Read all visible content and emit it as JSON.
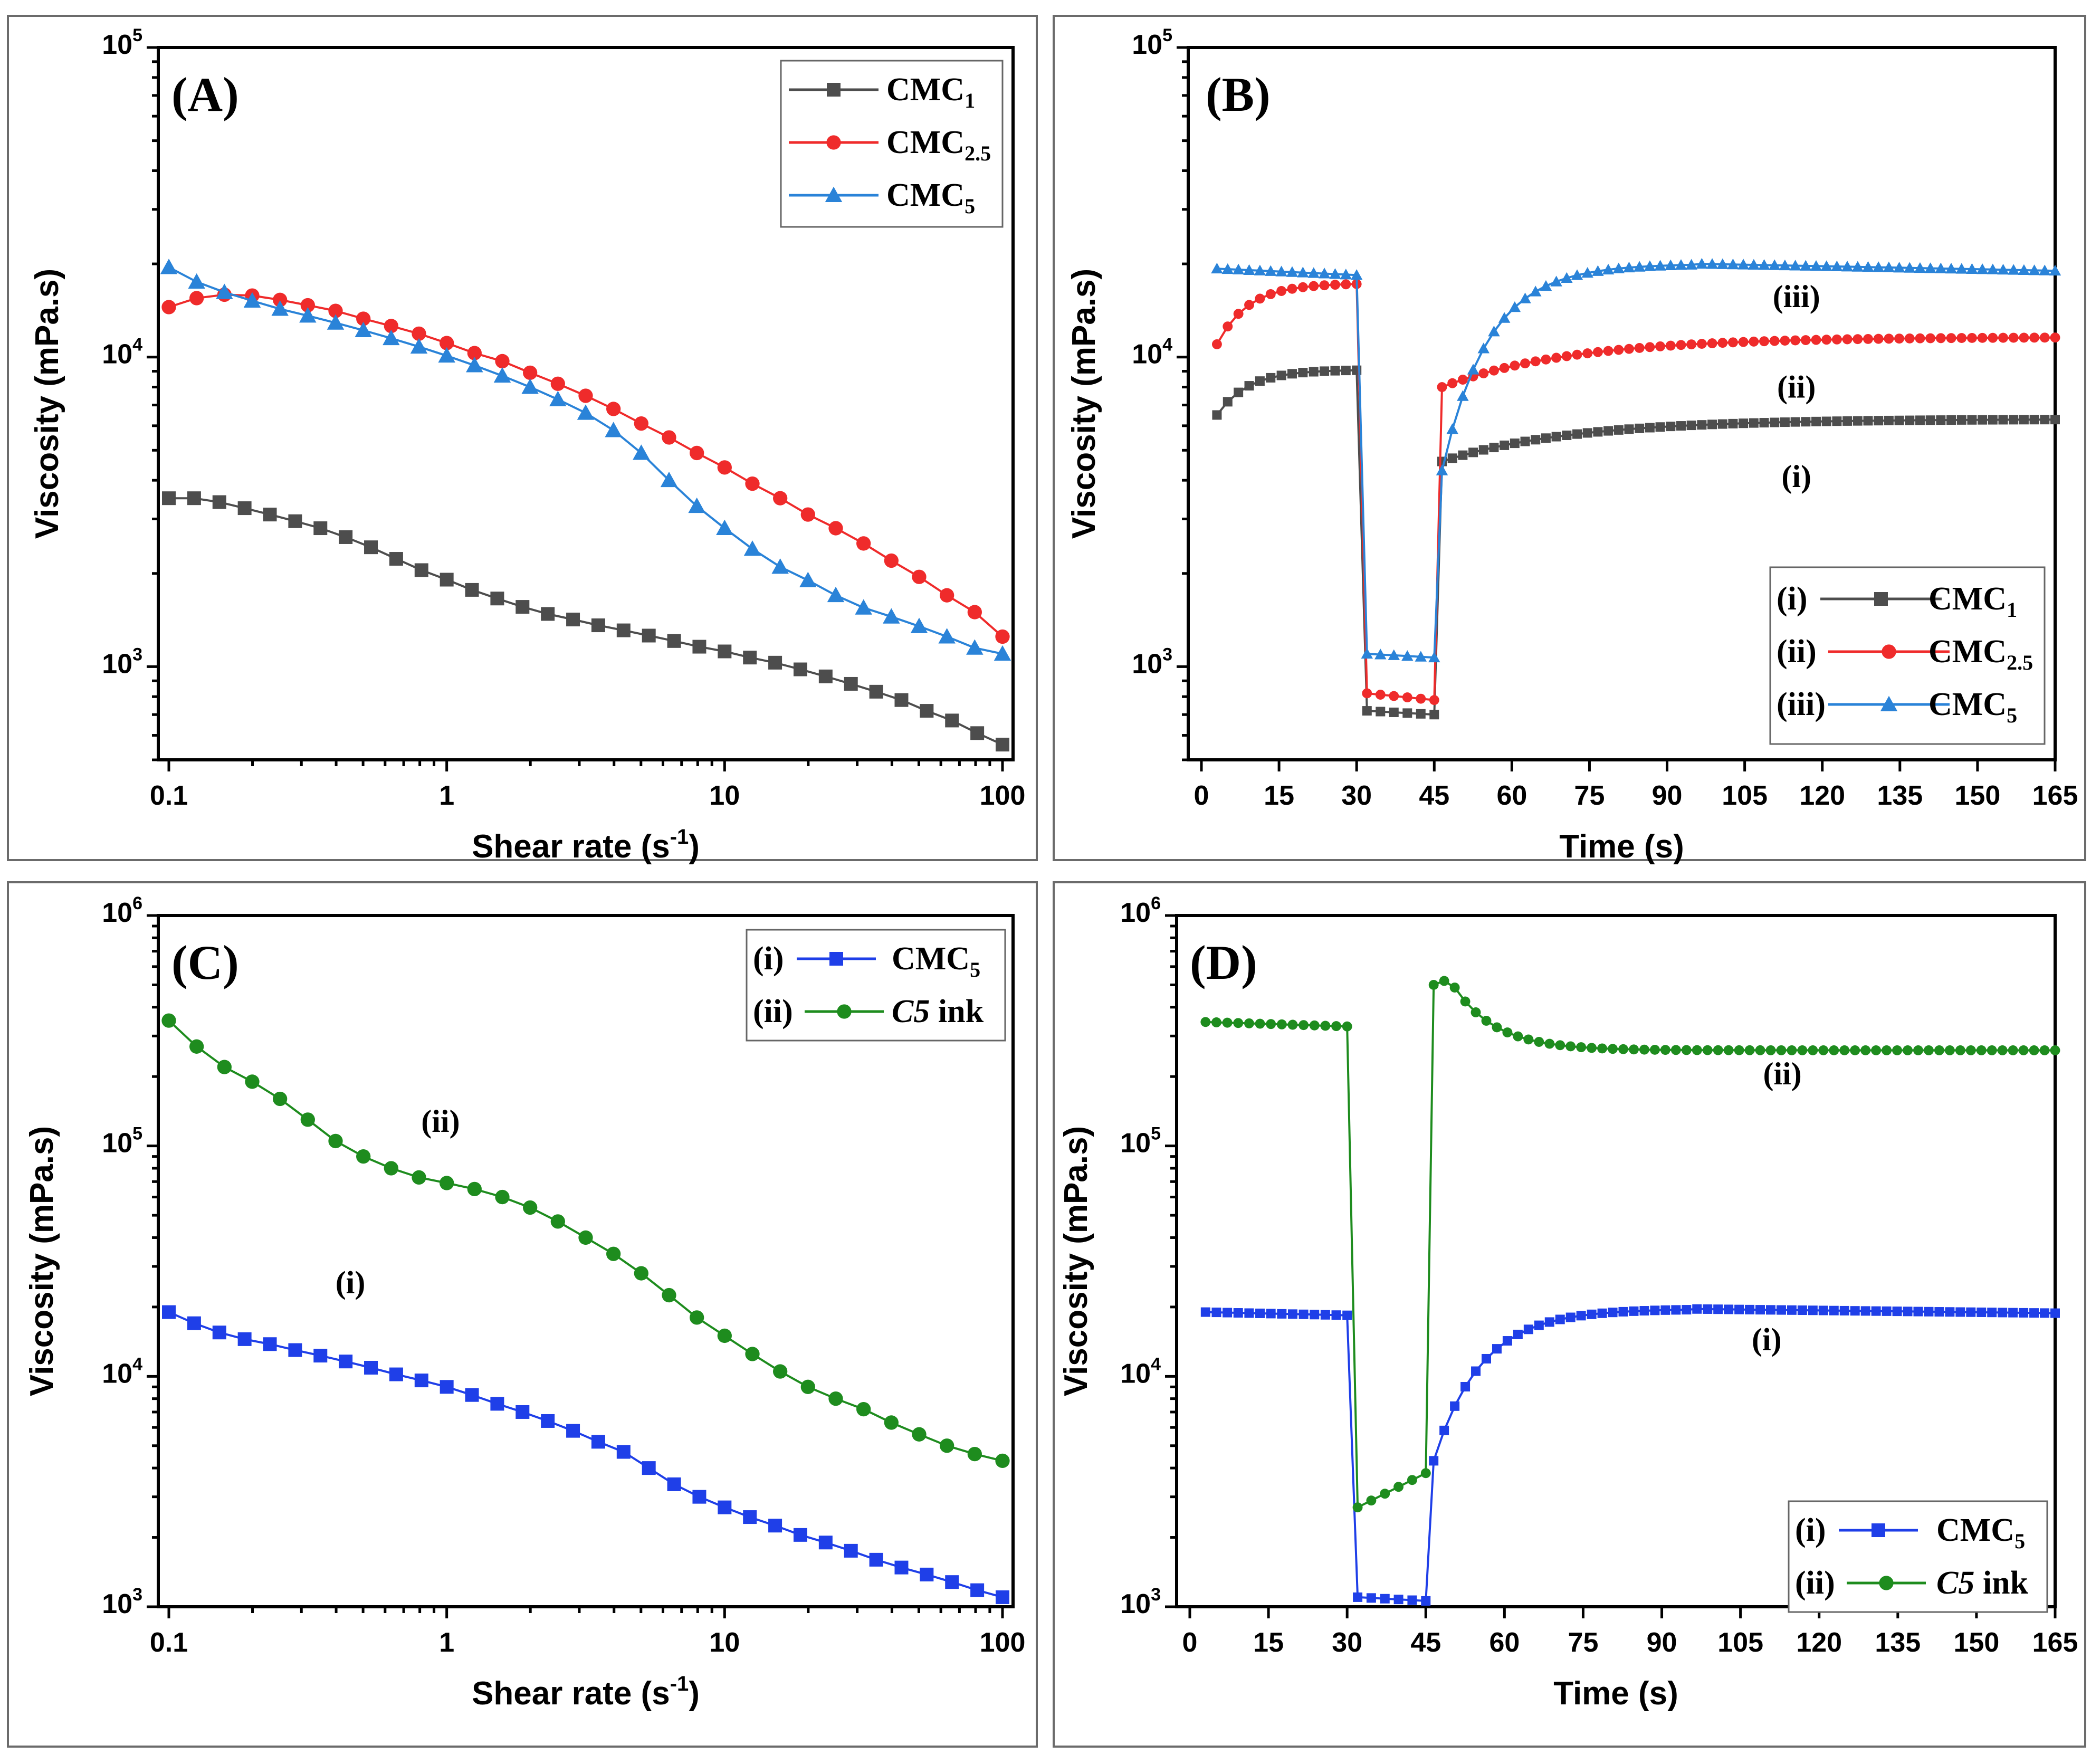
{
  "colors": {
    "CMC1": "#4d4d4d",
    "CMC2.5": "#ef2b2b",
    "CMC5": "#2a83d8",
    "CMC5_blue": "#1f3fe8",
    "C5_ink": "#1e8c1e"
  },
  "chart_data": [
    {
      "id": "A",
      "panel_label": "(A)",
      "type": "line",
      "xscale": "log",
      "yscale": "log",
      "xlim": [
        0.1,
        100
      ],
      "ylim": [
        500,
        100000
      ],
      "xticks": [
        0.1,
        1,
        10,
        100
      ],
      "xtick_labels": [
        "0.1",
        "1",
        "10",
        "100"
      ],
      "yticks": [
        1000,
        10000,
        100000
      ],
      "ytick_labels": [
        {
          "base": "10",
          "exp": "3"
        },
        {
          "base": "10",
          "exp": "4"
        },
        {
          "base": "10",
          "exp": "5"
        }
      ],
      "xlabel": {
        "text": "Shear rate (s",
        "sup": "-1",
        "tail": ")"
      },
      "ylabel": "Viscosity (mPa.s)",
      "legend_position": "top-right",
      "series": [
        {
          "name": "CMC",
          "sub": "1",
          "marker": "square",
          "color": "#4d4d4d",
          "x_range": [
            0.1,
            100
          ],
          "n": 34,
          "y": [
            3500,
            3500,
            3400,
            3250,
            3100,
            2950,
            2800,
            2620,
            2430,
            2230,
            2050,
            1910,
            1770,
            1660,
            1560,
            1480,
            1420,
            1360,
            1310,
            1260,
            1210,
            1160,
            1120,
            1070,
            1030,
            980,
            930,
            880,
            830,
            780,
            720,
            670,
            610,
            560
          ]
        },
        {
          "name": "CMC",
          "sub": "2.5",
          "marker": "circle",
          "color": "#ef2b2b",
          "x_range": [
            0.1,
            100
          ],
          "n": 31,
          "y": [
            14500,
            15500,
            15900,
            15800,
            15300,
            14700,
            14100,
            13300,
            12600,
            11900,
            11100,
            10300,
            9700,
            8900,
            8200,
            7500,
            6800,
            6100,
            5500,
            4900,
            4400,
            3900,
            3500,
            3100,
            2800,
            2500,
            2200,
            1950,
            1700,
            1500,
            1250
          ]
        },
        {
          "name": "CMC",
          "sub": "5",
          "marker": "triangle",
          "color": "#2a83d8",
          "x_range": [
            0.1,
            100
          ],
          "n": 31,
          "y": [
            19500,
            17500,
            16200,
            15200,
            14300,
            13600,
            12900,
            12200,
            11500,
            10800,
            10100,
            9400,
            8700,
            8000,
            7300,
            6600,
            5800,
            4900,
            4000,
            3300,
            2800,
            2400,
            2100,
            1900,
            1700,
            1550,
            1450,
            1350,
            1250,
            1150,
            1100
          ]
        }
      ]
    },
    {
      "id": "B",
      "panel_label": "(B)",
      "type": "line",
      "xscale": "linear",
      "yscale": "log",
      "xlim": [
        0,
        165
      ],
      "ylim": [
        500,
        100000
      ],
      "xticks": [
        0,
        15,
        30,
        45,
        60,
        75,
        90,
        105,
        120,
        135,
        150,
        165
      ],
      "xtick_labels": [
        "0",
        "15",
        "30",
        "45",
        "60",
        "75",
        "90",
        "105",
        "120",
        "135",
        "150",
        "165"
      ],
      "yticks": [
        1000,
        10000,
        100000
      ],
      "ytick_labels": [
        {
          "base": "10",
          "exp": "3"
        },
        {
          "base": "10",
          "exp": "4"
        },
        {
          "base": "10",
          "exp": "5"
        }
      ],
      "xlabel": {
        "text": "Time (s)",
        "sup": "",
        "tail": ""
      },
      "ylabel": "Viscosity (mPa.s)",
      "legend_position": "bottom-right",
      "series": [
        {
          "name": "CMC",
          "sub": "1",
          "roman": "(i)",
          "marker": "square",
          "color": "#4d4d4d",
          "segments": [
            {
              "t": [
                3,
                30
              ],
              "n": 14,
              "y0": 6500,
              "y1": 9100,
              "k": 6
            },
            {
              "t": [
                32,
                45
              ],
              "n": 6,
              "y0": 720,
              "y1": 700,
              "k": 0
            },
            {
              "t": [
                46.5,
                165
              ],
              "n": 60,
              "y0": 4600,
              "y1": 6300,
              "k": 25
            }
          ],
          "annotation": {
            "text": "(i)",
            "x": 115,
            "y": 3800
          }
        },
        {
          "name": "CMC",
          "sub": "2.5",
          "roman": "(ii)",
          "marker": "circle",
          "color": "#ef2b2b",
          "segments": [
            {
              "t": [
                3,
                30
              ],
              "n": 14,
              "y0": 11000,
              "y1": 17300,
              "k": 6
            },
            {
              "t": [
                32,
                45
              ],
              "n": 6,
              "y0": 820,
              "y1": 780,
              "k": 0
            },
            {
              "t": [
                46.5,
                165
              ],
              "n": 60,
              "y0": 8000,
              "y1": 11600,
              "k": 25
            }
          ],
          "annotation": {
            "text": "(ii)",
            "x": 115,
            "y": 7400
          }
        },
        {
          "name": "CMC",
          "sub": "5",
          "roman": "(iii)",
          "marker": "triangle",
          "color": "#2a83d8",
          "segments": [
            {
              "t": [
                3,
                30
              ],
              "n": 14,
              "y0": 19300,
              "y1": 18400,
              "k": 0
            },
            {
              "t": [
                32,
                45
              ],
              "n": 6,
              "y0": 1100,
              "y1": 1070,
              "k": 0
            },
            {
              "t": [
                46.5,
                165
              ],
              "n": 60,
              "y0": 4300,
              "y1": 19000,
              "k": 9,
              "peak": 20000
            }
          ],
          "annotation": {
            "text": "(iii)",
            "x": 115,
            "y": 14500
          }
        }
      ]
    },
    {
      "id": "C",
      "panel_label": "(C)",
      "type": "line",
      "xscale": "log",
      "yscale": "log",
      "xlim": [
        0.1,
        100
      ],
      "ylim": [
        1000,
        1000000
      ],
      "xticks": [
        0.1,
        1,
        10,
        100
      ],
      "xtick_labels": [
        "0.1",
        "1",
        "10",
        "100"
      ],
      "yticks": [
        1000,
        10000,
        100000,
        1000000
      ],
      "ytick_labels": [
        {
          "base": "10",
          "exp": "3"
        },
        {
          "base": "10",
          "exp": "4"
        },
        {
          "base": "10",
          "exp": "5"
        },
        {
          "base": "10",
          "exp": "6"
        }
      ],
      "xlabel": {
        "text": "Shear rate (s",
        "sup": "-1",
        "tail": ")"
      },
      "ylabel": "Viscosity (mPa.s)",
      "legend_position": "top-right",
      "series": [
        {
          "name": "CMC",
          "sub": "5",
          "roman": "(i)",
          "marker": "square",
          "color": "#1f3fe8",
          "x_range": [
            0.1,
            100
          ],
          "n": 34,
          "y": [
            19000,
            17000,
            15500,
            14500,
            13800,
            13000,
            12300,
            11600,
            10900,
            10200,
            9600,
            9000,
            8300,
            7600,
            7000,
            6400,
            5800,
            5200,
            4700,
            4000,
            3400,
            3000,
            2700,
            2450,
            2250,
            2050,
            1900,
            1750,
            1600,
            1480,
            1380,
            1280,
            1180,
            1100
          ],
          "annotation": {
            "text": "(i)",
            "x": 0.45,
            "y": 23000
          }
        },
        {
          "name": "C5 ink",
          "sub": "",
          "italic": "C5",
          "rest": " ink",
          "roman": "(ii)",
          "marker": "circle",
          "color": "#1e8c1e",
          "x_range": [
            0.1,
            100
          ],
          "n": 31,
          "y": [
            350000,
            270000,
            220000,
            190000,
            160000,
            130000,
            105000,
            90000,
            80000,
            73000,
            69000,
            65000,
            60000,
            54000,
            47000,
            40000,
            34000,
            28000,
            22500,
            18000,
            15000,
            12500,
            10500,
            9000,
            8000,
            7200,
            6300,
            5600,
            5000,
            4600,
            4300
          ],
          "annotation": {
            "text": "(ii)",
            "x": 0.95,
            "y": 115000
          }
        }
      ]
    },
    {
      "id": "D",
      "panel_label": "(D)",
      "type": "line",
      "xscale": "linear",
      "yscale": "log",
      "xlim": [
        0,
        165
      ],
      "ylim": [
        1000,
        1000000
      ],
      "xticks": [
        0,
        15,
        30,
        45,
        60,
        75,
        90,
        105,
        120,
        135,
        150,
        165
      ],
      "xtick_labels": [
        "0",
        "15",
        "30",
        "45",
        "60",
        "75",
        "90",
        "105",
        "120",
        "135",
        "150",
        "165"
      ],
      "yticks": [
        1000,
        10000,
        100000,
        1000000
      ],
      "ytick_labels": [
        {
          "base": "10",
          "exp": "3"
        },
        {
          "base": "10",
          "exp": "4"
        },
        {
          "base": "10",
          "exp": "5"
        },
        {
          "base": "10",
          "exp": "6"
        }
      ],
      "xlabel": {
        "text": "Time (s)",
        "sup": "",
        "tail": ""
      },
      "ylabel": "Viscosity (mPa.s)",
      "legend_position": "bottom-right",
      "series": [
        {
          "name": "CMC",
          "sub": "5",
          "roman": "(i)",
          "marker": "square",
          "color": "#1f3fe8",
          "segments": [
            {
              "t": [
                3,
                30
              ],
              "n": 14,
              "y0": 19000,
              "y1": 18400,
              "k": 0
            },
            {
              "t": [
                32,
                45
              ],
              "n": 6,
              "y0": 1100,
              "y1": 1060,
              "k": 0
            },
            {
              "t": [
                46.5,
                165
              ],
              "n": 60,
              "y0": 4300,
              "y1": 18800,
              "k": 9,
              "peak": 19600
            }
          ],
          "annotation": {
            "text": "(i)",
            "x": 110,
            "y": 13000
          }
        },
        {
          "name": "C5 ink",
          "sub": "",
          "italic": "C5",
          "rest": " ink",
          "roman": "(ii)",
          "marker": "circle",
          "color": "#1e8c1e",
          "segments": [
            {
              "t": [
                3,
                30
              ],
              "n": 14,
              "y0": 345000,
              "y1": 330000,
              "k": 0
            },
            {
              "t": [
                32,
                45
              ],
              "n": 6,
              "y0": 2700,
              "y1": 3800,
              "k": 0
            },
            {
              "t": [
                46.5,
                165
              ],
              "n": 60,
              "y0": 500000,
              "y1": 260000,
              "k": 8,
              "rise": 530000
            }
          ],
          "annotation": {
            "text": "(ii)",
            "x": 113,
            "y": 185000
          }
        }
      ]
    }
  ]
}
